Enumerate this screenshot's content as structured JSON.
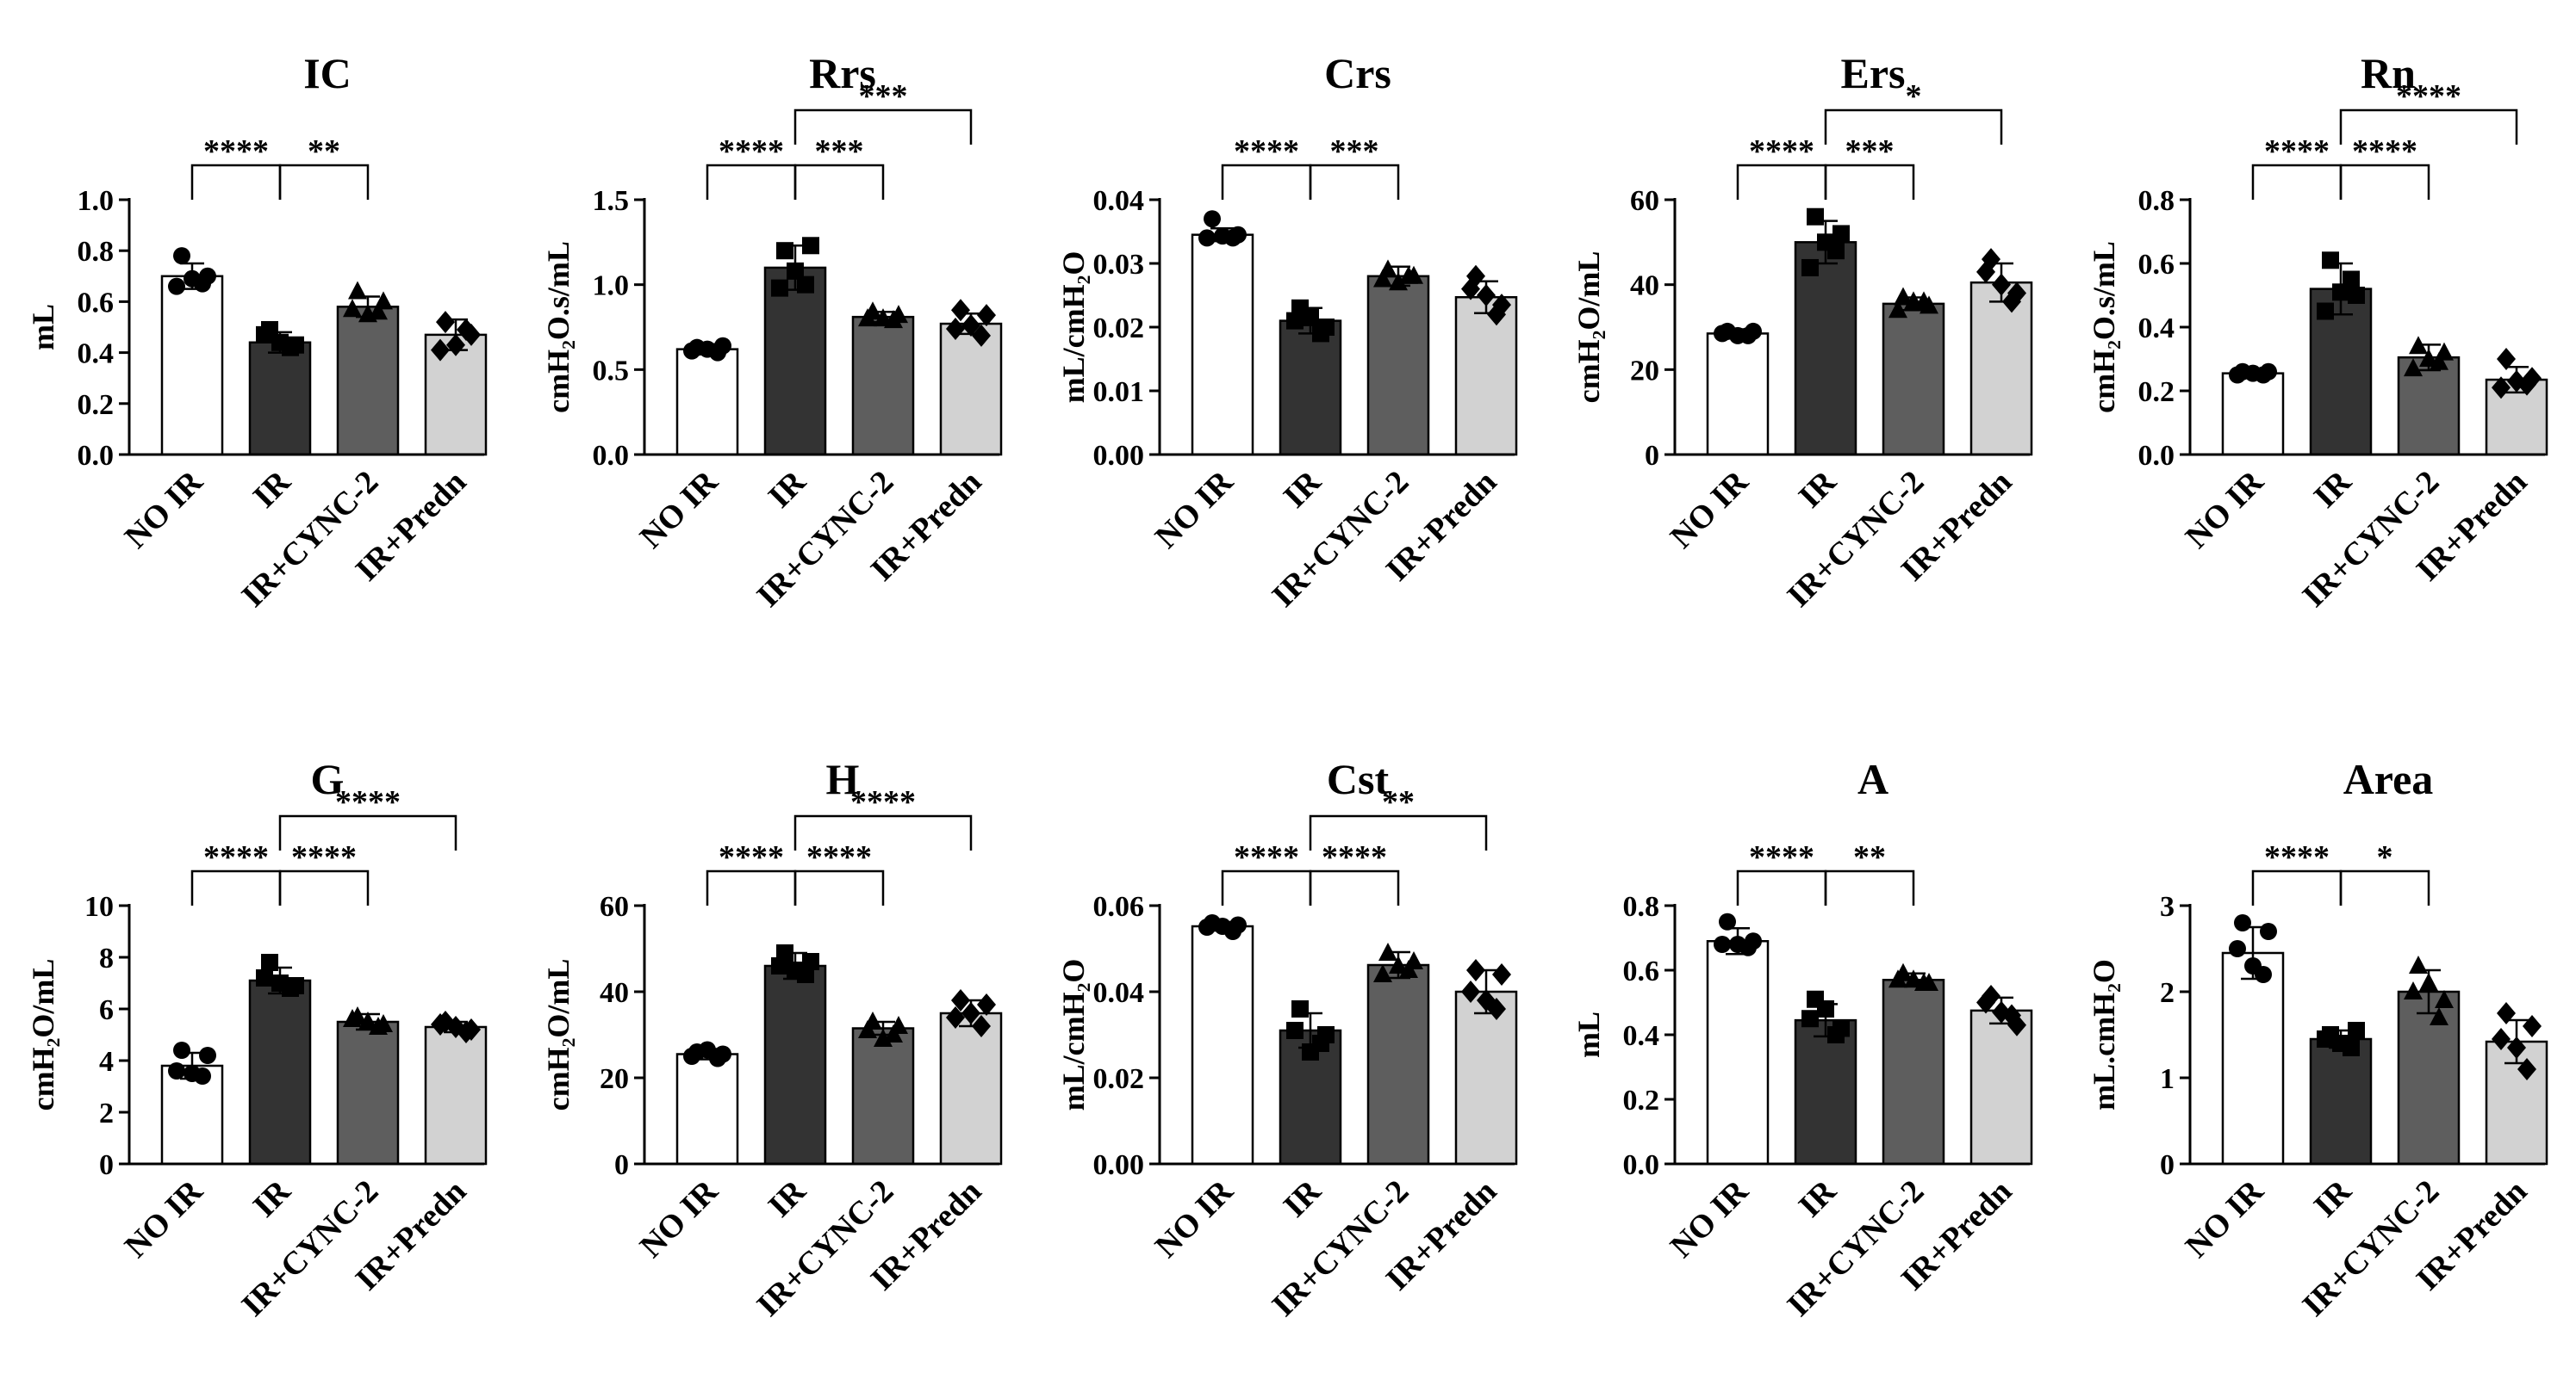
{
  "colors": {
    "NO IR": "#ffffff",
    "IR": "#333333",
    "IR+CYNC-2": "#5e5e5e",
    "IR+Predn": "#d2d2d2",
    "stroke": "#000000"
  },
  "chart_data": [
    {
      "type": "bar",
      "title": "IC",
      "ylabel": "mL",
      "ylim": [
        0,
        1.0
      ],
      "yticks": [
        "0.0",
        "0.2",
        "0.4",
        "0.6",
        "0.8",
        "1.0"
      ],
      "categories": [
        "NO IR",
        "IR",
        "IR+CYNC-2",
        "IR+Predn"
      ],
      "values": [
        0.7,
        0.44,
        0.58,
        0.47
      ],
      "errors": [
        0.05,
        0.04,
        0.04,
        0.06
      ],
      "markers": [
        "circle",
        "square",
        "triangle",
        "diamond"
      ],
      "points": [
        [
          0.78,
          0.67,
          0.66,
          0.7,
          0.69
        ],
        [
          0.49,
          0.42,
          0.47,
          0.43,
          0.44
        ],
        [
          0.64,
          0.56,
          0.57,
          0.6,
          0.55
        ],
        [
          0.52,
          0.49,
          0.41,
          0.47,
          0.43
        ]
      ],
      "comparisons": [
        {
          "from": 0,
          "to": 1,
          "label": "****",
          "level": 0
        },
        {
          "from": 1,
          "to": 2,
          "label": "**",
          "level": 0
        }
      ]
    },
    {
      "type": "bar",
      "title": "Rrs",
      "ylabel": "cmH₂O.s/mL",
      "ylim": [
        0,
        1.5
      ],
      "yticks": [
        "0.0",
        "0.5",
        "1.0",
        "1.5"
      ],
      "categories": [
        "NO IR",
        "IR",
        "IR+CYNC-2",
        "IR+Predn"
      ],
      "values": [
        0.62,
        1.1,
        0.81,
        0.77
      ],
      "errors": [
        0.03,
        0.13,
        0.03,
        0.06
      ],
      "markers": [
        "circle",
        "square",
        "triangle",
        "diamond"
      ],
      "points": [
        [
          0.63,
          0.6,
          0.61,
          0.64,
          0.62
        ],
        [
          1.2,
          1.0,
          0.98,
          1.23,
          1.08
        ],
        [
          0.84,
          0.79,
          0.8,
          0.82,
          0.8
        ],
        [
          0.85,
          0.7,
          0.74,
          0.82,
          0.76
        ]
      ],
      "comparisons": [
        {
          "from": 0,
          "to": 1,
          "label": "****",
          "level": 0
        },
        {
          "from": 1,
          "to": 2,
          "label": "***",
          "level": 0
        },
        {
          "from": 1,
          "to": 3,
          "label": "***",
          "level": 1
        }
      ]
    },
    {
      "type": "bar",
      "title": "Crs",
      "ylabel": "mL/cmH₂O",
      "ylim": [
        0,
        0.04
      ],
      "yticks": [
        "0.00",
        "0.01",
        "0.02",
        "0.03",
        "0.04"
      ],
      "categories": [
        "NO IR",
        "IR",
        "IR+CYNC-2",
        "IR+Predn"
      ],
      "values": [
        0.0345,
        0.021,
        0.028,
        0.0247
      ],
      "errors": [
        0.001,
        0.002,
        0.0015,
        0.0025
      ],
      "markers": [
        "circle",
        "square",
        "triangle",
        "diamond"
      ],
      "points": [
        [
          0.037,
          0.034,
          0.034,
          0.0345,
          0.0343
        ],
        [
          0.023,
          0.019,
          0.021,
          0.02,
          0.0215
        ],
        [
          0.029,
          0.028,
          0.0275,
          0.028,
          0.027
        ],
        [
          0.028,
          0.022,
          0.026,
          0.0235,
          0.025
        ]
      ],
      "comparisons": [
        {
          "from": 0,
          "to": 1,
          "label": "****",
          "level": 0
        },
        {
          "from": 1,
          "to": 2,
          "label": "***",
          "level": 0
        }
      ]
    },
    {
      "type": "bar",
      "title": "Ers",
      "ylabel": "cmH₂O/mL",
      "ylim": [
        0,
        60
      ],
      "yticks": [
        "0",
        "20",
        "40",
        "60"
      ],
      "categories": [
        "NO IR",
        "IR",
        "IR+CYNC-2",
        "IR+Predn"
      ],
      "values": [
        28.5,
        50,
        35.5,
        40.5
      ],
      "errors": [
        1,
        5,
        1.5,
        4.5
      ],
      "markers": [
        "circle",
        "square",
        "triangle",
        "diamond"
      ],
      "points": [
        [
          29,
          28,
          28.5,
          29,
          28
        ],
        [
          56,
          48,
          44,
          52,
          50
        ],
        [
          37,
          36,
          34,
          35,
          36
        ],
        [
          46,
          36,
          43,
          38,
          40
        ]
      ],
      "comparisons": [
        {
          "from": 0,
          "to": 1,
          "label": "****",
          "level": 0
        },
        {
          "from": 1,
          "to": 2,
          "label": "***",
          "level": 0
        },
        {
          "from": 1,
          "to": 3,
          "label": "*",
          "level": 1
        }
      ]
    },
    {
      "type": "bar",
      "title": "Rn",
      "ylabel": "cmH₂O.s/mL",
      "ylim": [
        0,
        0.8
      ],
      "yticks": [
        "0.0",
        "0.2",
        "0.4",
        "0.6",
        "0.8"
      ],
      "categories": [
        "NO IR",
        "IR",
        "IR+CYNC-2",
        "IR+Predn"
      ],
      "values": [
        0.255,
        0.52,
        0.305,
        0.235
      ],
      "errors": [
        0.01,
        0.08,
        0.04,
        0.04
      ],
      "markers": [
        "circle",
        "square",
        "triangle",
        "diamond"
      ],
      "points": [
        [
          0.26,
          0.25,
          0.25,
          0.26,
          0.255
        ],
        [
          0.61,
          0.55,
          0.45,
          0.5,
          0.51
        ],
        [
          0.34,
          0.29,
          0.27,
          0.32,
          0.3
        ],
        [
          0.3,
          0.22,
          0.21,
          0.24,
          0.23
        ]
      ],
      "comparisons": [
        {
          "from": 0,
          "to": 1,
          "label": "****",
          "level": 0
        },
        {
          "from": 1,
          "to": 2,
          "label": "****",
          "level": 0
        },
        {
          "from": 1,
          "to": 3,
          "label": "****",
          "level": 1
        }
      ]
    },
    {
      "type": "bar",
      "title": "G",
      "ylabel": "cmH₂O/mL",
      "ylim": [
        0,
        10
      ],
      "yticks": [
        "0",
        "2",
        "4",
        "6",
        "8",
        "10"
      ],
      "categories": [
        "NO IR",
        "IR",
        "IR+CYNC-2",
        "IR+Predn"
      ],
      "values": [
        3.8,
        7.1,
        5.5,
        5.3
      ],
      "errors": [
        0.5,
        0.5,
        0.3,
        0.2
      ],
      "markers": [
        "circle",
        "square",
        "triangle",
        "diamond"
      ],
      "points": [
        [
          4.4,
          3.4,
          3.6,
          4.2,
          3.5
        ],
        [
          7.8,
          6.8,
          7.2,
          6.9,
          7.0
        ],
        [
          5.7,
          5.3,
          5.6,
          5.4,
          5.5
        ],
        [
          5.5,
          5.1,
          5.4,
          5.2,
          5.3
        ]
      ],
      "comparisons": [
        {
          "from": 0,
          "to": 1,
          "label": "****",
          "level": 0
        },
        {
          "from": 1,
          "to": 2,
          "label": "****",
          "level": 0
        },
        {
          "from": 1,
          "to": 3,
          "label": "****",
          "level": 1
        }
      ]
    },
    {
      "type": "bar",
      "title": "H",
      "ylabel": "cmH₂O/mL",
      "ylim": [
        0,
        60
      ],
      "yticks": [
        "0",
        "20",
        "40",
        "60"
      ],
      "categories": [
        "NO IR",
        "IR",
        "IR+CYNC-2",
        "IR+Predn"
      ],
      "values": [
        25.5,
        46,
        31.5,
        35
      ],
      "errors": [
        1.2,
        3,
        1.5,
        3
      ],
      "markers": [
        "circle",
        "square",
        "triangle",
        "diamond"
      ],
      "points": [
        [
          26,
          24.5,
          25,
          25.5,
          26.5
        ],
        [
          49,
          44,
          46,
          47,
          45
        ],
        [
          33,
          30,
          31,
          32,
          29
        ],
        [
          38,
          32,
          34,
          37,
          35
        ]
      ],
      "comparisons": [
        {
          "from": 0,
          "to": 1,
          "label": "****",
          "level": 0
        },
        {
          "from": 1,
          "to": 2,
          "label": "****",
          "level": 0
        },
        {
          "from": 1,
          "to": 3,
          "label": "****",
          "level": 1
        }
      ]
    },
    {
      "type": "bar",
      "title": "Cst",
      "ylabel": "mL/cmH₂O",
      "ylim": [
        0,
        0.06
      ],
      "yticks": [
        "0.00",
        "0.02",
        "0.04",
        "0.06"
      ],
      "categories": [
        "NO IR",
        "IR",
        "IR+CYNC-2",
        "IR+Predn"
      ],
      "values": [
        0.0552,
        0.031,
        0.0462,
        0.04
      ],
      "errors": [
        0.001,
        0.004,
        0.003,
        0.005
      ],
      "markers": [
        "circle",
        "square",
        "triangle",
        "diamond"
      ],
      "points": [
        [
          0.056,
          0.054,
          0.055,
          0.0555,
          0.0552
        ],
        [
          0.036,
          0.028,
          0.031,
          0.03,
          0.026
        ],
        [
          0.049,
          0.045,
          0.044,
          0.047,
          0.046
        ],
        [
          0.045,
          0.036,
          0.04,
          0.044,
          0.038
        ]
      ],
      "comparisons": [
        {
          "from": 0,
          "to": 1,
          "label": "****",
          "level": 0
        },
        {
          "from": 1,
          "to": 2,
          "label": "****",
          "level": 0
        },
        {
          "from": 1,
          "to": 3,
          "label": "**",
          "level": 1
        }
      ]
    },
    {
      "type": "bar",
      "title": "A",
      "ylabel": "mL",
      "ylim": [
        0,
        0.8
      ],
      "yticks": [
        "0.0",
        "0.2",
        "0.4",
        "0.6",
        "0.8"
      ],
      "categories": [
        "NO IR",
        "IR",
        "IR+CYNC-2",
        "IR+Predn"
      ],
      "values": [
        0.69,
        0.445,
        0.57,
        0.475
      ],
      "errors": [
        0.04,
        0.05,
        0.02,
        0.04
      ],
      "markers": [
        "circle",
        "square",
        "triangle",
        "diamond"
      ],
      "points": [
        [
          0.75,
          0.67,
          0.68,
          0.69,
          0.68
        ],
        [
          0.51,
          0.4,
          0.45,
          0.42,
          0.48
        ],
        [
          0.59,
          0.56,
          0.57,
          0.56,
          0.57
        ],
        [
          0.52,
          0.46,
          0.5,
          0.43,
          0.47
        ]
      ],
      "comparisons": [
        {
          "from": 0,
          "to": 1,
          "label": "****",
          "level": 0
        },
        {
          "from": 1,
          "to": 2,
          "label": "**",
          "level": 0
        }
      ]
    },
    {
      "type": "bar",
      "title": "Area",
      "ylabel": "mL.cmH₂O",
      "ylim": [
        0,
        3
      ],
      "yticks": [
        "0",
        "1",
        "2",
        "3"
      ],
      "categories": [
        "NO IR",
        "IR",
        "IR+CYNC-2",
        "IR+Predn"
      ],
      "values": [
        2.45,
        1.45,
        2.0,
        1.42
      ],
      "errors": [
        0.3,
        0.1,
        0.25,
        0.25
      ],
      "markers": [
        "circle",
        "square",
        "triangle",
        "diamond"
      ],
      "points": [
        [
          2.8,
          2.2,
          2.5,
          2.7,
          2.3
        ],
        [
          1.5,
          1.35,
          1.45,
          1.55,
          1.4
        ],
        [
          2.3,
          1.7,
          2.0,
          1.9,
          2.1
        ],
        [
          1.75,
          1.1,
          1.45,
          1.6,
          1.35
        ]
      ],
      "comparisons": [
        {
          "from": 0,
          "to": 1,
          "label": "****",
          "level": 0
        },
        {
          "from": 1,
          "to": 2,
          "label": "*",
          "level": 0
        }
      ]
    }
  ]
}
